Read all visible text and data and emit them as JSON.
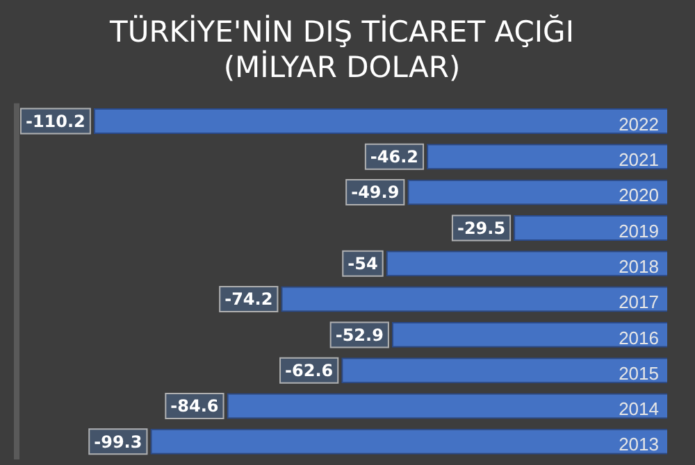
{
  "chart_data": {
    "type": "bar",
    "orientation": "horizontal",
    "title": "TÜRKİYE'NİN DIŞ TİCARET AÇIĞI\n(MİLYAR DOLAR)",
    "categories": [
      "2022",
      "2021",
      "2020",
      "2019",
      "2018",
      "2017",
      "2016",
      "2015",
      "2014",
      "2013"
    ],
    "values": [
      -110.2,
      -46.2,
      -49.9,
      -29.5,
      -54,
      -74.2,
      -52.9,
      -62.6,
      -84.6,
      -99.3
    ],
    "color": "#4472c4",
    "xlim": [
      -125,
      0
    ],
    "data_labels": true,
    "tick_labels": "y",
    "legend": false
  }
}
